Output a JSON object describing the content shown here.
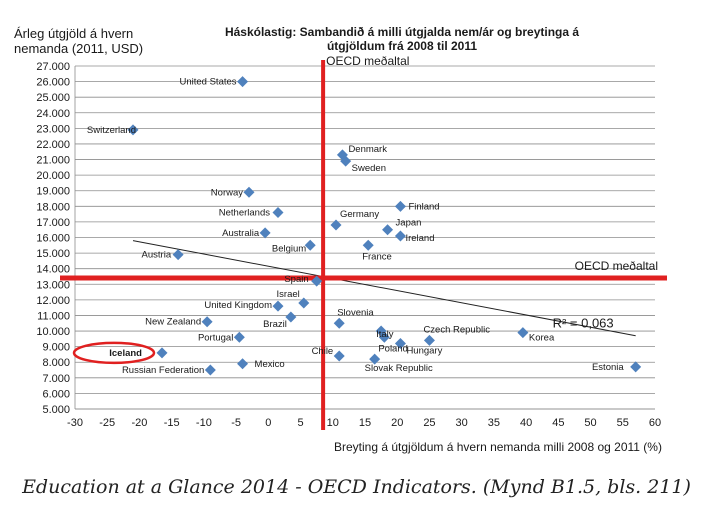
{
  "chart_data": {
    "type": "scatter",
    "title": "Háskólastig: Sambandið á milli útgjalda nem/ár og breytinga á útgjöldum frá 2008 til 2011",
    "ylabel": "Árleg útgjöld á hvern nemanda (2011, USD)",
    "xlabel": "Breyting á útgjöldum á hvern nemanda milli 2008 og 2011 (%)",
    "xlim": [
      -30,
      60
    ],
    "ylim": [
      5000,
      27000
    ],
    "x_ticks": [
      "-30",
      "-25",
      "-20",
      "-15",
      "-10",
      "-5",
      "0",
      "5",
      "10",
      "15",
      "20",
      "25",
      "30",
      "35",
      "40",
      "45",
      "50",
      "55",
      "60"
    ],
    "y_ticks": [
      "5.000",
      "6.000",
      "7.000",
      "8.000",
      "9.000",
      "10.000",
      "11.000",
      "12.000",
      "13.000",
      "14.000",
      "15.000",
      "16.000",
      "17.000",
      "18.000",
      "19.000",
      "20.000",
      "21.000",
      "22.000",
      "23.000",
      "24.000",
      "25.000",
      "26.000",
      "27.000"
    ],
    "grid": true,
    "marker_color": "#4f81bd",
    "points": [
      {
        "label": "United States",
        "x": -4,
        "y": 26000
      },
      {
        "label": "Switzerland",
        "x": -21,
        "y": 22900
      },
      {
        "label": "Denmark",
        "x": 11.5,
        "y": 21300
      },
      {
        "label": "Sweden",
        "x": 12,
        "y": 20900
      },
      {
        "label": "Norway",
        "x": -3,
        "y": 18900
      },
      {
        "label": "Finland",
        "x": 20.5,
        "y": 18000
      },
      {
        "label": "Netherlands",
        "x": 1.5,
        "y": 17600
      },
      {
        "label": "Germany",
        "x": 10.5,
        "y": 16800
      },
      {
        "label": "Australia",
        "x": -0.5,
        "y": 16300
      },
      {
        "label": "Japan",
        "x": 18.5,
        "y": 16500
      },
      {
        "label": "Ireland",
        "x": 20.5,
        "y": 16100
      },
      {
        "label": "Belgium",
        "x": 6.5,
        "y": 15500
      },
      {
        "label": "France",
        "x": 15.5,
        "y": 15500
      },
      {
        "label": "Austria",
        "x": -14,
        "y": 14900
      },
      {
        "label": "Spain",
        "x": 7.5,
        "y": 13200
      },
      {
        "label": "Israel",
        "x": 5.5,
        "y": 11800
      },
      {
        "label": "United Kingdom",
        "x": 1.5,
        "y": 11600
      },
      {
        "label": "Brazil",
        "x": 3.5,
        "y": 10900
      },
      {
        "label": "Slovenia",
        "x": 11,
        "y": 10500
      },
      {
        "label": "New Zealand",
        "x": -9.5,
        "y": 10600
      },
      {
        "label": "Italy",
        "x": 17.5,
        "y": 10000
      },
      {
        "label": "Czech Republic",
        "x": 25,
        "y": 9400
      },
      {
        "label": "Korea",
        "x": 39.5,
        "y": 9900
      },
      {
        "label": "Portugal",
        "x": -4.5,
        "y": 9600
      },
      {
        "label": "Poland",
        "x": 18,
        "y": 9600
      },
      {
        "label": "Hungary",
        "x": 20.5,
        "y": 9200
      },
      {
        "label": "Iceland",
        "x": -16.5,
        "y": 8600
      },
      {
        "label": "Chile",
        "x": 11,
        "y": 8400
      },
      {
        "label": "Slovak Republic",
        "x": 16.5,
        "y": 8200
      },
      {
        "label": "Mexico",
        "x": -4,
        "y": 7900
      },
      {
        "label": "Russian Federation",
        "x": -9,
        "y": 7500
      },
      {
        "label": "Estonia",
        "x": 57,
        "y": 7700
      }
    ],
    "trendline": {
      "from": [
        -21,
        15800
      ],
      "to": [
        57,
        9700
      ],
      "label": "R² = 0,063"
    },
    "reference_lines": {
      "x": {
        "value": 8.5,
        "label": "OECD meðaltal"
      },
      "y": {
        "value": 13400,
        "label": "OECD meðaltal"
      }
    },
    "highlight": "Iceland"
  },
  "caption": "Education at a Glance 2014 - OECD Indicators. (Mynd B1.5, bls. 211)"
}
